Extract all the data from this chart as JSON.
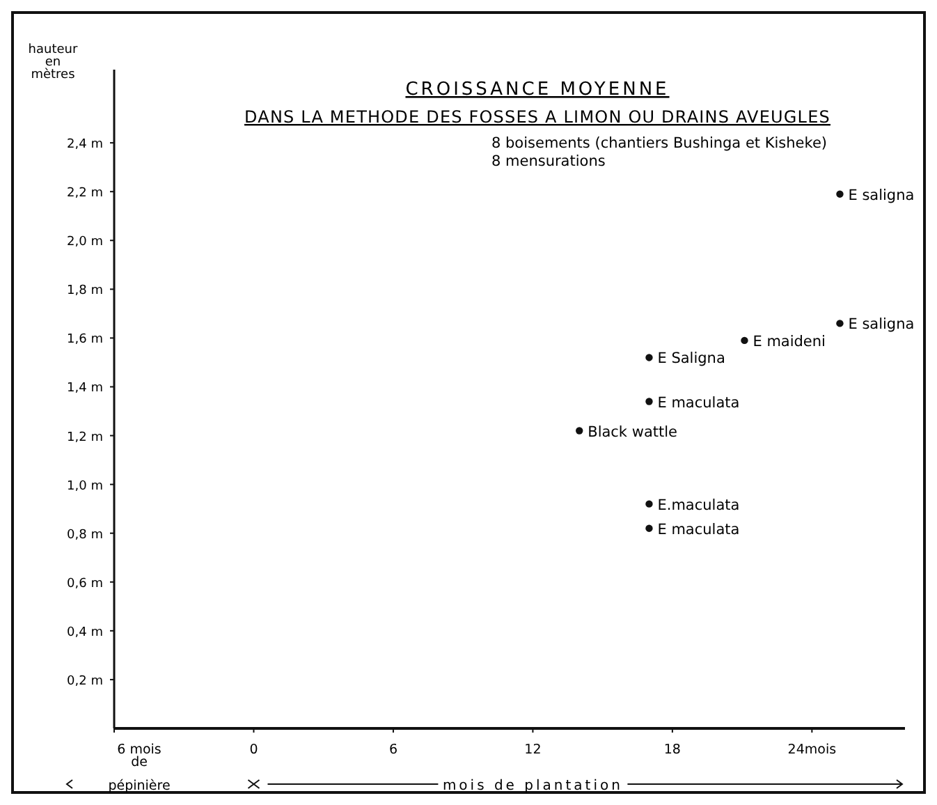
{
  "chart_data": {
    "type": "scatter",
    "title": "CROISSANCE MOYENNE",
    "subtitle": "DANS LA METHODE DES FOSSES A LIMON OU DRAINS AVEUGLES",
    "ylabel": "hauteur en mètres",
    "xlabel": "mois de plantation",
    "annotations": [
      "8 boisements (chantiers Bushinga et Kisheke)",
      "8 mensurations",
      {
        "text": "E saligna",
        "x": 25.2,
        "y": 2.19
      },
      {
        "text": "E saligna",
        "x": 25.2,
        "y": 1.66
      },
      {
        "text": "E maideni",
        "x": 21.1,
        "y": 1.59
      },
      {
        "text": "E Saligna",
        "x": 17,
        "y": 1.52
      },
      {
        "text": "E maculata",
        "x": 17,
        "y": 1.34
      },
      {
        "text": "Black wattle",
        "x": 14,
        "y": 1.22
      },
      {
        "text": "E.maculata",
        "x": 17,
        "y": 0.92
      },
      {
        "text": "E maculata",
        "x": 17,
        "y": 0.82
      }
    ],
    "x": [
      25.2,
      25.2,
      21.1,
      17,
      17,
      14,
      17,
      17
    ],
    "values": [
      2.19,
      1.66,
      1.59,
      1.52,
      1.34,
      1.22,
      0.92,
      0.82
    ],
    "color": "#111111",
    "marker": "circle",
    "xlim": [
      -6,
      28
    ],
    "xticks": [
      {
        "value": -6,
        "label": "6 mois de pépinière"
      },
      0,
      6,
      12,
      18,
      {
        "value": 24,
        "label": "24mois"
      }
    ],
    "ylim": [
      0,
      2.7
    ],
    "yticks": [
      {
        "value": 0.2,
        "label": "0,2 m"
      },
      {
        "value": 0.4,
        "label": "0,4 m"
      },
      {
        "value": 0.6,
        "label": "0,6 m"
      },
      {
        "value": 0.8,
        "label": "0,8 m"
      },
      {
        "value": 1,
        "label": "1,0 m"
      },
      {
        "value": 1.2,
        "label": "1,2 m"
      },
      {
        "value": 1.4,
        "label": "1,4 m"
      },
      {
        "value": 1.6,
        "label": "1,6 m"
      },
      {
        "value": 1.8,
        "label": "1,8 m"
      },
      {
        "value": 2,
        "label": "2,0 m"
      },
      {
        "value": 2.2,
        "label": "2,2 m"
      },
      {
        "value": 2.4,
        "label": "2,4 m"
      }
    ],
    "grid": false
  }
}
